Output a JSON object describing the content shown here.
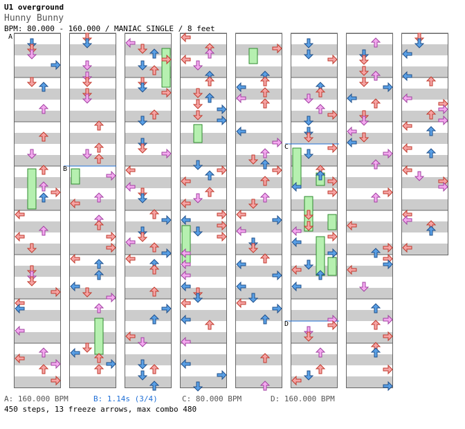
{
  "header": {
    "title": "U1 overground",
    "artist": "Hunny Bunny",
    "info": "BPM: 80.000 - 160.000 / MANIAC SINGLE / 8 feet"
  },
  "markers": [
    {
      "label": "A",
      "bpm": "160.000 BPM"
    },
    {
      "label": "B",
      "stop": "1.14s (3/4)"
    },
    {
      "label": "C",
      "bpm": "80.000 BPM"
    },
    {
      "label": "D",
      "bpm": "160.000 BPM"
    }
  ],
  "legend": {
    "a": "A: 160.000 BPM",
    "b": "B: 1.14s (3/4)",
    "c": "C: 80.000 BPM",
    "d": "D: 160.000 BPM"
  },
  "summary": "450 steps, 13 freeze arrows, max combo 480",
  "colors": {
    "quarter_note": "#f6a4a4",
    "eighth_note": "#5aa0e6",
    "sixteenth_note": "#f5aaf0",
    "freeze": "#b6f0b0",
    "stripe": "#cccccc",
    "marker_line": "#1f6fd6"
  },
  "chart": {
    "columns": 8,
    "measures_per_column": 8,
    "total_measures": 61,
    "freeze_count": 13
  }
}
